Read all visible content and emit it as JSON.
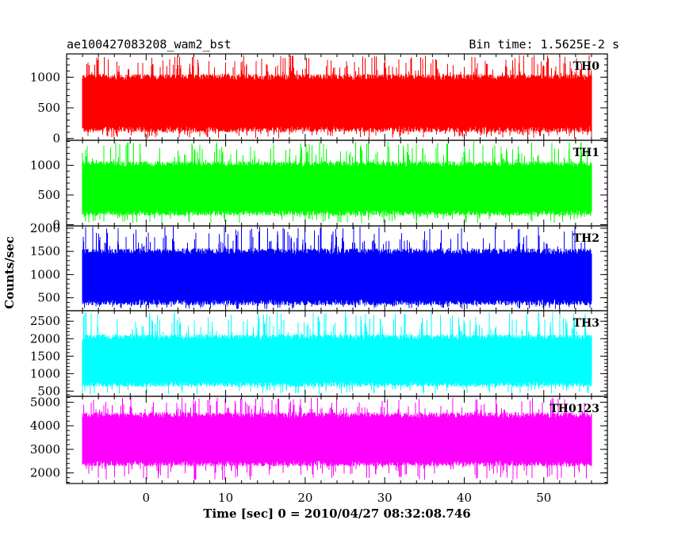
{
  "chart_data": {
    "type": "line",
    "title": "ae100427083208_wam2_bst",
    "bin_time_label": "Bin time: 1.5625E-2 s",
    "xlabel": "Time [sec] 0 = 2010/04/27 08:32:08.746",
    "ylabel": "Counts/sec",
    "xlim": [
      -10,
      58
    ],
    "x_ticks": [
      "0",
      "10",
      "20",
      "30",
      "40",
      "50"
    ],
    "x_tick_values": [
      0,
      10,
      20,
      30,
      40,
      50
    ],
    "x_data_range": [
      -8,
      56
    ],
    "bin_time": 0.015625,
    "series": [
      {
        "name": "TH0",
        "color": "#ff0000",
        "ylim": [
          -30,
          1380
        ],
        "y_ticks": [
          "0",
          "500",
          "1000"
        ],
        "y_tick_values": [
          0,
          500,
          1000
        ],
        "mean": 640,
        "low": 150,
        "high": 1000,
        "min": 5,
        "max": 1360
      },
      {
        "name": "TH1",
        "color": "#00ff00",
        "ylim": [
          -20,
          1420
        ],
        "y_ticks": [
          "0",
          "500",
          "1000"
        ],
        "y_tick_values": [
          0,
          500,
          1000
        ],
        "mean": 650,
        "low": 200,
        "high": 1020,
        "min": 20,
        "max": 1400
      },
      {
        "name": "TH2",
        "color": "#0000ff",
        "ylim": [
          220,
          2050
        ],
        "y_ticks": [
          "500",
          "1000",
          "1500",
          "2000"
        ],
        "y_tick_values": [
          500,
          1000,
          1500,
          2000
        ],
        "mean": 950,
        "low": 400,
        "high": 1500,
        "min": 260,
        "max": 2040
      },
      {
        "name": "TH3",
        "color": "#00ffff",
        "ylim": [
          350,
          2800
        ],
        "y_ticks": [
          "500",
          "1000",
          "1500",
          "2000",
          "2500"
        ],
        "y_tick_values": [
          500,
          1000,
          1500,
          2000,
          2500
        ],
        "mean": 1400,
        "low": 700,
        "high": 2050,
        "min": 400,
        "max": 2780
      },
      {
        "name": "TH0123",
        "color": "#ff00ff",
        "ylim": [
          1550,
          5250
        ],
        "y_ticks": [
          "2000",
          "3000",
          "4000",
          "5000"
        ],
        "y_tick_values": [
          2000,
          3000,
          4000,
          5000
        ],
        "mean": 3400,
        "low": 2400,
        "high": 4450,
        "min": 1700,
        "max": 5200
      }
    ]
  }
}
